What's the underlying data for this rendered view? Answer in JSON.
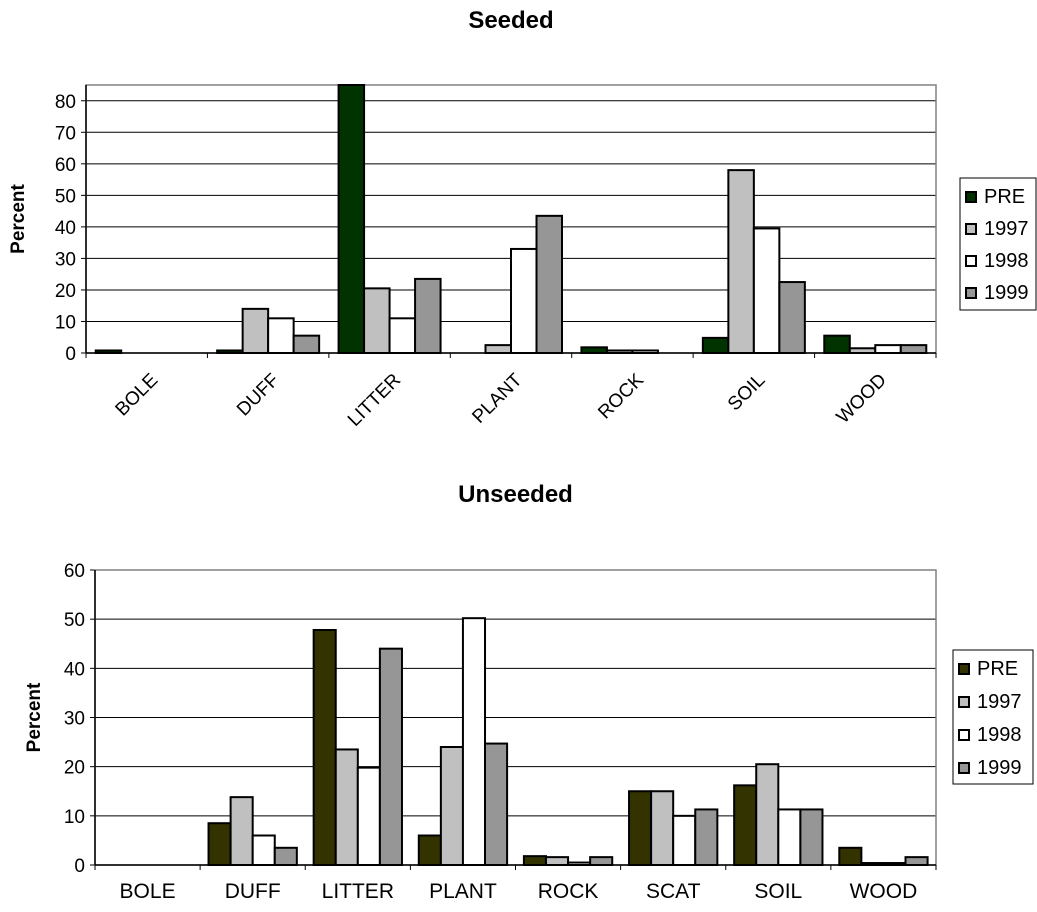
{
  "chart_data": [
    {
      "type": "bar",
      "title": "Seeded",
      "xlabel": "",
      "ylabel": "Percent",
      "ylim": [
        0,
        85
      ],
      "yticks": [
        0,
        10,
        20,
        30,
        40,
        50,
        60,
        70,
        80
      ],
      "categories": [
        "BOLE",
        "DUFF",
        "LITTER",
        "PLANT",
        "ROCK",
        "SOIL",
        "WOOD"
      ],
      "series": [
        {
          "name": "PRE",
          "color": "#003300",
          "values": [
            0.8,
            0.8,
            85,
            0,
            1.8,
            4.8,
            5.5
          ]
        },
        {
          "name": "1997",
          "color": "#c0c0c0",
          "values": [
            0,
            14,
            20.5,
            2.5,
            0.8,
            58,
            1.5
          ]
        },
        {
          "name": "1998",
          "color": "#ffffff",
          "values": [
            0,
            11,
            11,
            33,
            0.8,
            39.5,
            2.5
          ]
        },
        {
          "name": "1999",
          "color": "#969696",
          "values": [
            0,
            5.5,
            23.5,
            43.5,
            0,
            22.5,
            2.5
          ]
        }
      ],
      "grid": true,
      "legend_position": "right",
      "x_tick_rotation": "diagonal"
    },
    {
      "type": "bar",
      "title": "Unseeded",
      "xlabel": "",
      "ylabel": "Percent",
      "ylim": [
        0,
        60
      ],
      "yticks": [
        0,
        10,
        20,
        30,
        40,
        50,
        60
      ],
      "categories": [
        "BOLE",
        "DUFF",
        "LITTER",
        "PLANT",
        "ROCK",
        "SCAT",
        "SOIL",
        "WOOD"
      ],
      "series": [
        {
          "name": "PRE",
          "color": "#333300",
          "values": [
            0,
            8.5,
            47.8,
            6,
            1.8,
            15,
            16.2,
            3.5
          ]
        },
        {
          "name": "1997",
          "color": "#c0c0c0",
          "values": [
            0,
            13.8,
            23.5,
            24,
            1.6,
            15,
            20.5,
            0.4
          ]
        },
        {
          "name": "1998",
          "color": "#ffffff",
          "values": [
            0,
            6,
            19.8,
            50.2,
            0.5,
            10,
            11.3,
            0.4
          ]
        },
        {
          "name": "1999",
          "color": "#969696",
          "values": [
            0,
            3.5,
            44,
            24.7,
            1.6,
            11.3,
            11.3,
            1.6
          ]
        }
      ],
      "grid": true,
      "legend_position": "right",
      "x_tick_rotation": "none"
    }
  ]
}
